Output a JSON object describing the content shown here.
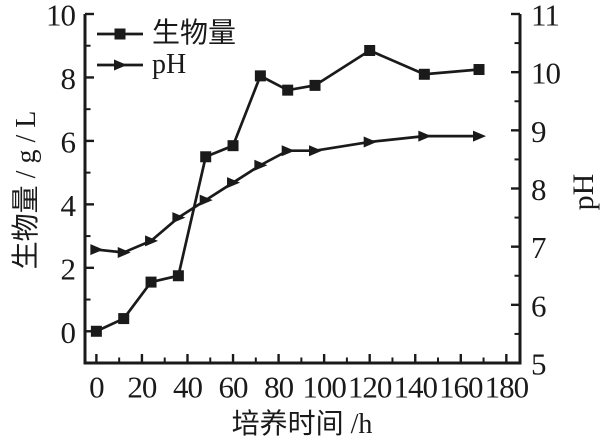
{
  "figure": {
    "bg_color": "#ffffff",
    "line_color": "#1a1a1a"
  },
  "chart_data": {
    "type": "line",
    "title": "",
    "x": {
      "label": "培养时间 /h",
      "ticks": [
        0,
        20,
        40,
        60,
        80,
        100,
        120,
        140,
        160,
        180
      ],
      "minor_ticks": [
        10,
        30,
        50,
        70,
        90,
        110,
        130,
        150,
        170
      ],
      "range": [
        -5,
        186
      ]
    },
    "y_left": {
      "label": "生物量 / g / L",
      "ticks": [
        0,
        2,
        4,
        6,
        8,
        10
      ],
      "minor_ticks": [
        1,
        3,
        5,
        7,
        9
      ],
      "range": [
        -1,
        10
      ]
    },
    "y_right": {
      "label": "pH",
      "ticks": [
        5,
        6,
        7,
        8,
        9,
        10,
        11
      ],
      "minor_ticks": [
        5.5,
        6.5,
        7.5,
        8.5,
        9.5,
        10.5
      ],
      "range": [
        5,
        11
      ]
    },
    "x_values": [
      0,
      12,
      24,
      36,
      48,
      60,
      72,
      84,
      96,
      120,
      144,
      168
    ],
    "series": [
      {
        "name": "生物量",
        "axis": "left",
        "marker": "square",
        "values": [
          0,
          0.4,
          1.55,
          1.75,
          5.5,
          5.85,
          8.05,
          7.6,
          7.75,
          8.85,
          8.1,
          8.25
        ]
      },
      {
        "name": "pH",
        "axis": "right",
        "marker": "triangle-right",
        "values": [
          6.95,
          6.9,
          7.1,
          7.5,
          7.8,
          8.1,
          8.4,
          8.65,
          8.65,
          8.8,
          8.9,
          8.9
        ]
      }
    ],
    "legend": {
      "position": "top-left",
      "items": [
        "生物量",
        "pH"
      ]
    },
    "grid": false
  }
}
